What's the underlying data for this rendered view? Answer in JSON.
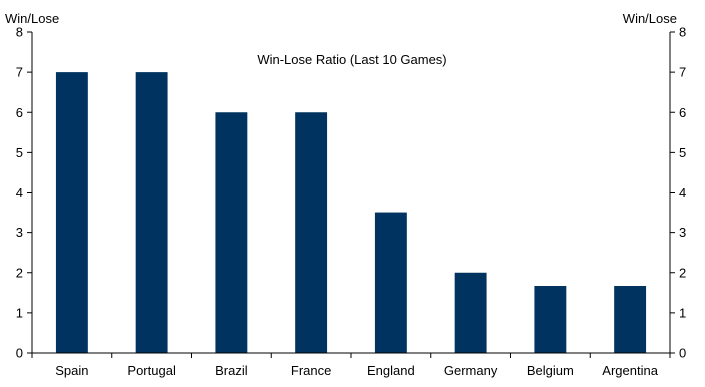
{
  "chart_data": {
    "type": "bar",
    "title": "Win-Lose Ratio (Last 10 Games)",
    "ylabel_left": "Win/Lose",
    "ylabel_right": "Win/Lose",
    "categories": [
      "Spain",
      "Portugal",
      "Brazil",
      "France",
      "England",
      "Germany",
      "Belgium",
      "Argentina"
    ],
    "values": [
      7,
      7,
      6,
      6,
      3.5,
      2,
      1.67,
      1.67
    ],
    "ylim": [
      0,
      8
    ],
    "yticks": [
      0,
      1,
      2,
      3,
      4,
      5,
      6,
      7,
      8
    ],
    "bar_color": "#00335f",
    "grid": false,
    "legend": "none"
  }
}
